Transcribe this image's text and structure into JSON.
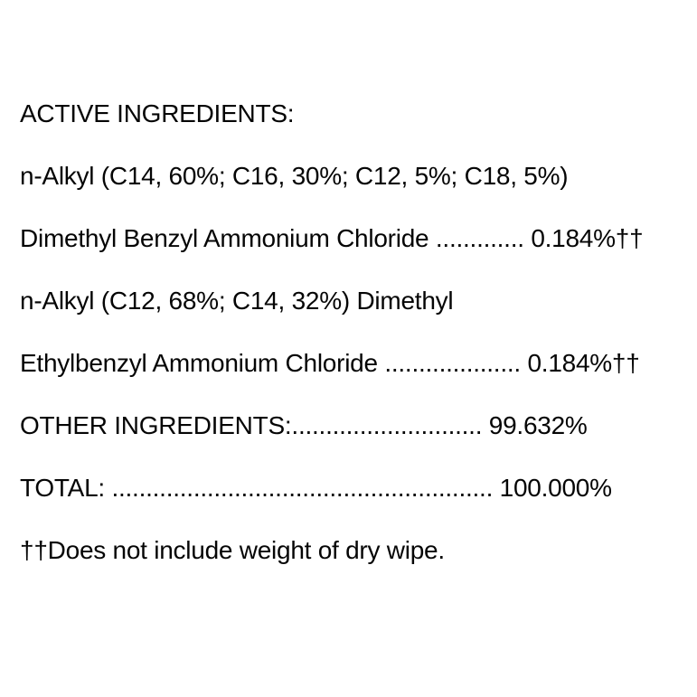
{
  "page": {
    "background_color": "#ffffff",
    "text_color": "#000000"
  },
  "label": {
    "heading": "ACTIVE INGREDIENTS:",
    "active_ingredients": [
      {
        "name_line1": "n-Alkyl (C14, 60%; C16, 30%; C12, 5%; C18, 5%)",
        "name_line2": "Dimethyl Benzyl Ammonium Chloride",
        "leader": " ............. ",
        "value": "0.184%††"
      },
      {
        "name_line1": "n-Alkyl (C12, 68%; C14, 32%) Dimethyl",
        "name_line2": "Ethylbenzyl Ammonium Chloride",
        "leader": " .................... ",
        "value": "0.184%††"
      }
    ],
    "other_ingredients": {
      "label": "OTHER INGREDIENTS:",
      "leader": "............................ ",
      "value": "99.632%"
    },
    "total": {
      "label": "TOTAL:",
      "leader": " ........................................................ ",
      "value": "100.000%"
    },
    "footnote": "††Does not include weight of dry wipe."
  }
}
